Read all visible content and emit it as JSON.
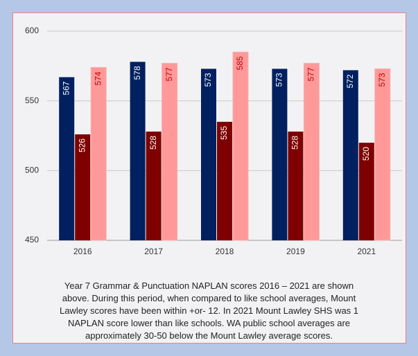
{
  "chart_data": {
    "type": "bar",
    "categories": [
      "2016",
      "2017",
      "2018",
      "2019",
      "2021"
    ],
    "series": [
      {
        "color": "#002060",
        "values": [
          567,
          578,
          573,
          573,
          572
        ]
      },
      {
        "color": "#7f0000",
        "values": [
          526,
          528,
          535,
          528,
          520
        ]
      },
      {
        "color": "#ff9999",
        "values": [
          574,
          577,
          585,
          577,
          573
        ]
      }
    ],
    "ylim": [
      450,
      600
    ],
    "yticks": [
      450,
      500,
      550,
      600
    ],
    "grid": true,
    "caption_lines": [
      "Year 7 Grammar & Punctuation NAPLAN scores 2016 – 2021 are shown",
      "above. During this period, when compared to like school averages, Mount",
      "Lawley scores have been within +or- 12. In 2021 Mount Lawley SHS was 1",
      "NAPLAN score lower than like schools. WA public school averages are",
      "approximately 30-50 below the Mount Lawley average scores."
    ]
  }
}
